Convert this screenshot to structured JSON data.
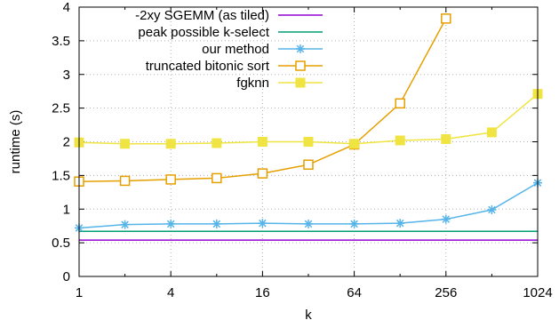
{
  "chart_data": {
    "type": "line",
    "xlabel": "k",
    "ylabel": "runtime (s)",
    "x_scale": "log2",
    "xlim": [
      1,
      1024
    ],
    "ylim": [
      0,
      4
    ],
    "grid": true,
    "legend_position": "top-left",
    "x_ticks": [
      {
        "value": 1,
        "label": "1"
      },
      {
        "value": 4,
        "label": "4"
      },
      {
        "value": 16,
        "label": "16"
      },
      {
        "value": 64,
        "label": "64"
      },
      {
        "value": 256,
        "label": "256"
      },
      {
        "value": 1024,
        "label": "1024"
      }
    ],
    "y_ticks": [
      {
        "value": 0,
        "label": "0"
      },
      {
        "value": 0.5,
        "label": "0.5"
      },
      {
        "value": 1,
        "label": "1"
      },
      {
        "value": 1.5,
        "label": "1.5"
      },
      {
        "value": 2,
        "label": "2"
      },
      {
        "value": 2.5,
        "label": "2.5"
      },
      {
        "value": 3,
        "label": "3"
      },
      {
        "value": 3.5,
        "label": "3.5"
      },
      {
        "value": 4,
        "label": "4"
      }
    ],
    "series": [
      {
        "name": "-2xy SGEMM (as tiled)",
        "color": "#9400d3",
        "marker": "none",
        "x": [
          1,
          1024
        ],
        "y": [
          0.54,
          0.54
        ]
      },
      {
        "name": "peak possible k-select",
        "color": "#009e73",
        "marker": "none",
        "x": [
          1,
          1024
        ],
        "y": [
          0.67,
          0.67
        ]
      },
      {
        "name": "our method",
        "color": "#56b4e9",
        "marker": "star",
        "x": [
          1,
          2,
          4,
          8,
          16,
          32,
          64,
          128,
          256,
          512,
          1024
        ],
        "y": [
          0.72,
          0.77,
          0.78,
          0.78,
          0.79,
          0.78,
          0.78,
          0.79,
          0.85,
          0.99,
          1.39
        ]
      },
      {
        "name": "truncated bitonic sort",
        "color": "#e69f00",
        "marker": "open-square",
        "x": [
          1,
          2,
          4,
          8,
          16,
          32,
          64,
          128,
          256
        ],
        "y": [
          1.41,
          1.42,
          1.44,
          1.46,
          1.53,
          1.66,
          1.96,
          2.57,
          3.83
        ]
      },
      {
        "name": "fgknn",
        "color": "#f0e442",
        "marker": "filled-square",
        "x": [
          1,
          2,
          4,
          8,
          16,
          32,
          64,
          128,
          256,
          512,
          1024
        ],
        "y": [
          1.99,
          1.97,
          1.97,
          1.98,
          2.0,
          2.0,
          1.97,
          2.02,
          2.04,
          2.14,
          2.71
        ]
      }
    ]
  }
}
